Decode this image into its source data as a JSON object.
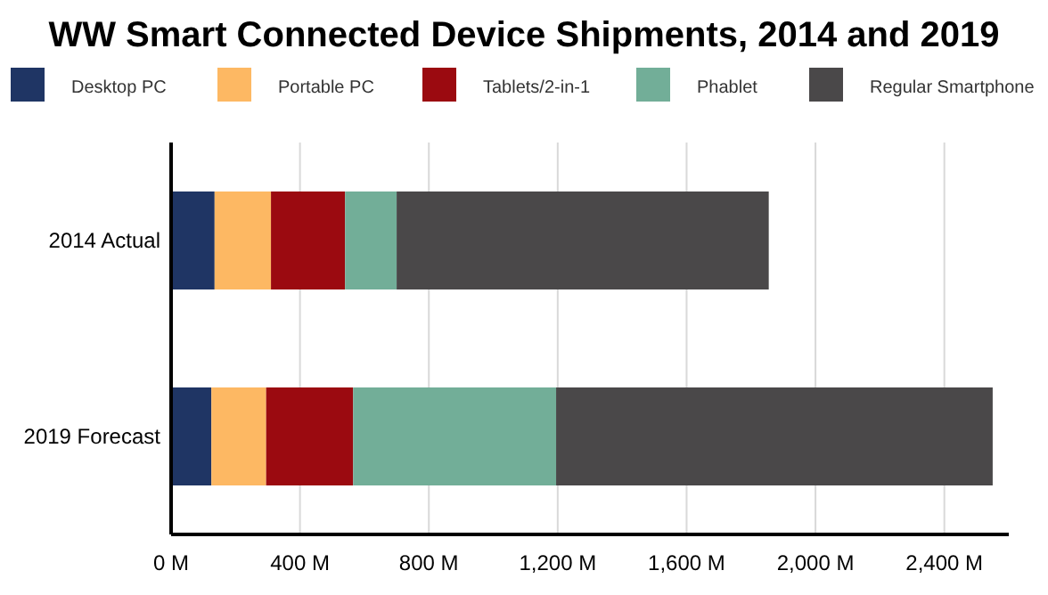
{
  "chart_data": {
    "type": "bar",
    "title": "WW Smart Connected Device Shipments, 2014 and 2019",
    "orientation": "horizontal",
    "stacked": true,
    "categories": [
      "2014 Actual",
      "2019 Forecast"
    ],
    "series": [
      {
        "name": "Desktop PC",
        "color": "#1f3564",
        "values": [
          135,
          125
        ]
      },
      {
        "name": "Portable PC",
        "color": "#fdb863",
        "values": [
          175,
          170
        ]
      },
      {
        "name": "Tablets/2-in-1",
        "color": "#9b0a10",
        "values": [
          230,
          270
        ]
      },
      {
        "name": "Phablet",
        "color": "#72ae98",
        "values": [
          160,
          630
        ]
      },
      {
        "name": "Regular Smartphone",
        "color": "#4a4849",
        "values": [
          1155,
          1355
        ]
      }
    ],
    "xlim": [
      0,
      2600
    ],
    "xticks": [
      {
        "value": 0,
        "label": "0 M"
      },
      {
        "value": 400,
        "label": "400 M"
      },
      {
        "value": 800,
        "label": "800 M"
      },
      {
        "value": 1200,
        "label": "1,200 M"
      },
      {
        "value": 1600,
        "label": "1,600 M"
      },
      {
        "value": 2000,
        "label": "2,000 M"
      },
      {
        "value": 2400,
        "label": "2,400 M"
      }
    ],
    "grid": "x",
    "legend": "top"
  }
}
